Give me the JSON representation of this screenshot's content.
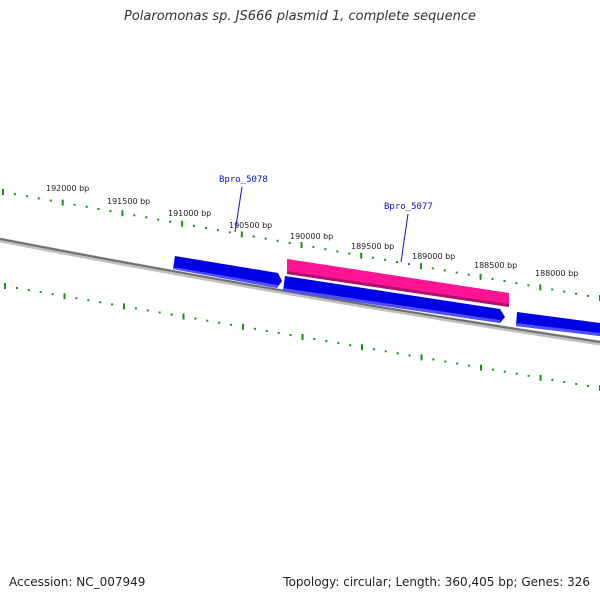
{
  "title": "Polaromonas sp. JS666 plasmid 1, complete sequence",
  "ruler": {
    "labels": [
      "192000 bp",
      "191500 bp",
      "191000 bp",
      "190500 bp",
      "190000 bp",
      "189500 bp",
      "189000 bp",
      "188500 bp",
      "188000 bp"
    ]
  },
  "genes": [
    {
      "label": "Bpro_5078",
      "color": "#0000e6",
      "strand": "forward"
    },
    {
      "label": "Bpro_5077",
      "color": "#0000e6",
      "strand": "forward"
    },
    {
      "label": "",
      "color": "#0000e6",
      "strand": "forward"
    },
    {
      "label": "",
      "color": "#ff1493",
      "strand": "reverse"
    }
  ],
  "colors": {
    "ruler_ticks": "#1e8c1e",
    "backbone": "#808080",
    "gene_label": "#1010c8"
  },
  "footer": {
    "accession": "Accession: NC_007949",
    "summary": "Topology: circular; Length: 360,405 bp; Genes: 326"
  }
}
